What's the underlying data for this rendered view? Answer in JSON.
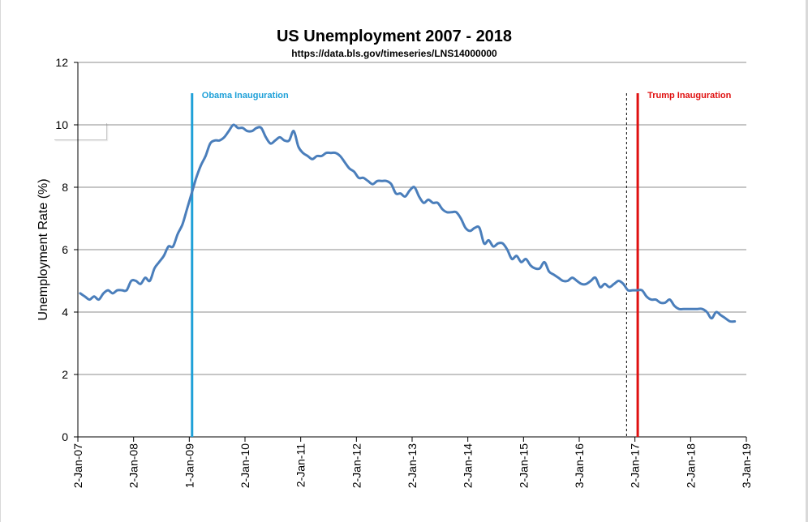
{
  "chart_data": {
    "type": "line",
    "title": "US Unemployment 2007 - 2018",
    "subtitle": "https://data.bls.gov/timeseries/LNS14000000",
    "xlabel": "",
    "ylabel": "Unemployment Rate (%)",
    "ylim": [
      0,
      12
    ],
    "yticks": [
      0,
      2,
      4,
      6,
      8,
      10,
      12
    ],
    "xlim_months": [
      0,
      144
    ],
    "xtick_labels": [
      "2-Jan-07",
      "2-Jan-08",
      "1-Jan-09",
      "2-Jan-10",
      "2-Jan-11",
      "2-Jan-12",
      "2-Jan-13",
      "2-Jan-14",
      "2-Jan-15",
      "3-Jan-16",
      "2-Jan-17",
      "2-Jan-18",
      "3-Jan-19"
    ],
    "xtick_months": [
      0,
      12,
      24,
      36,
      48,
      60,
      72,
      84,
      96,
      108,
      120,
      132,
      144
    ],
    "grid": true,
    "series": [
      {
        "name": "Unemployment Rate",
        "color": "#4a7ebb",
        "start": "Jan 2007",
        "step": "month",
        "values": [
          4.6,
          4.5,
          4.4,
          4.5,
          4.4,
          4.6,
          4.7,
          4.6,
          4.7,
          4.7,
          4.7,
          5.0,
          5.0,
          4.9,
          5.1,
          5.0,
          5.4,
          5.6,
          5.8,
          6.1,
          6.1,
          6.5,
          6.8,
          7.3,
          7.8,
          8.3,
          8.7,
          9.0,
          9.4,
          9.5,
          9.5,
          9.6,
          9.8,
          10.0,
          9.9,
          9.9,
          9.8,
          9.8,
          9.9,
          9.9,
          9.6,
          9.4,
          9.5,
          9.6,
          9.5,
          9.5,
          9.8,
          9.3,
          9.1,
          9.0,
          8.9,
          9.0,
          9.0,
          9.1,
          9.1,
          9.1,
          9.0,
          8.8,
          8.6,
          8.5,
          8.3,
          8.3,
          8.2,
          8.1,
          8.2,
          8.2,
          8.2,
          8.1,
          7.8,
          7.8,
          7.7,
          7.9,
          8.0,
          7.7,
          7.5,
          7.6,
          7.5,
          7.5,
          7.3,
          7.2,
          7.2,
          7.2,
          7.0,
          6.7,
          6.6,
          6.7,
          6.7,
          6.2,
          6.3,
          6.1,
          6.2,
          6.2,
          6.0,
          5.7,
          5.8,
          5.6,
          5.7,
          5.5,
          5.4,
          5.4,
          5.6,
          5.3,
          5.2,
          5.1,
          5.0,
          5.0,
          5.1,
          5.0,
          4.9,
          4.9,
          5.0,
          5.1,
          4.8,
          4.9,
          4.8,
          4.9,
          5.0,
          4.9,
          4.7,
          4.7,
          4.7,
          4.7,
          4.5,
          4.4,
          4.4,
          4.3,
          4.3,
          4.4,
          4.2,
          4.1,
          4.1,
          4.1,
          4.1,
          4.1,
          4.1,
          4.0,
          3.8,
          4.0,
          3.9,
          3.8,
          3.7,
          3.7
        ]
      }
    ],
    "annotations": [
      {
        "label": "Obama Inauguration",
        "month": 24.6,
        "color": "#1ea0d8",
        "style": "solid"
      },
      {
        "label": "",
        "month": 118.2,
        "color": "#000000",
        "style": "dashed"
      },
      {
        "label": "Trump Inauguration",
        "month": 120.6,
        "color": "#e01010",
        "style": "solid"
      }
    ]
  }
}
